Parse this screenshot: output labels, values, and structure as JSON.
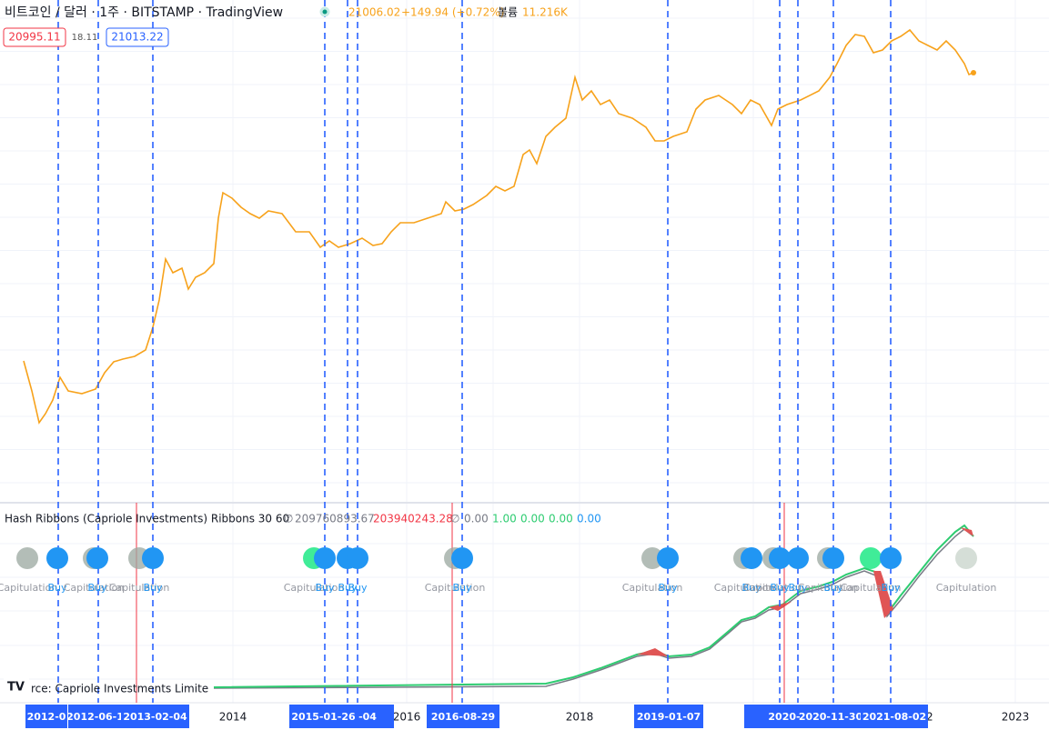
{
  "header": {
    "symbol": "비트코인 / 달러 · 1주 · BITSTAMP · TradingView",
    "last": "21006.02",
    "change": "+149.94 (+0.72%)",
    "volume_label": "볼륨",
    "volume": "11.216K"
  },
  "price_tags": [
    "20995.11",
    "18.11",
    "21013.22"
  ],
  "indicator": {
    "name": "Hash Ribbons (Capriole Investments) Ribbons 30 60",
    "values": [
      "∅",
      "209760893.67",
      "203940243.28",
      "∅",
      "0.00",
      "1.00",
      "0.00",
      "0.00",
      "0.00"
    ],
    "source": "rce: Capriole Investments Limite"
  },
  "signals": [
    "Capitulation",
    "Buy",
    "Capitulation",
    "Buy",
    "Capitulation",
    "Buy",
    "Capitulation",
    "Buy",
    "Buy",
    "Buy",
    "Capitulation",
    "Buy",
    "Capitulation",
    "Buy",
    "Capitulation",
    "Buy",
    "Capitulation",
    "Buy",
    "Buy",
    "Capitulation",
    "Buy",
    "Capitulation",
    "Buy",
    "Capitulation"
  ],
  "x_axis": [
    "2014",
    "2016",
    "7",
    "2018",
    "20",
    "22",
    "2023"
  ],
  "date_tags": [
    "2012-0",
    "2012-06-1",
    "2013-02-04",
    "2015-01-26",
    "-04",
    "2016-08-29",
    "2019-01-07",
    "2020-",
    "2020-11-30",
    "2021-08-02"
  ]
}
